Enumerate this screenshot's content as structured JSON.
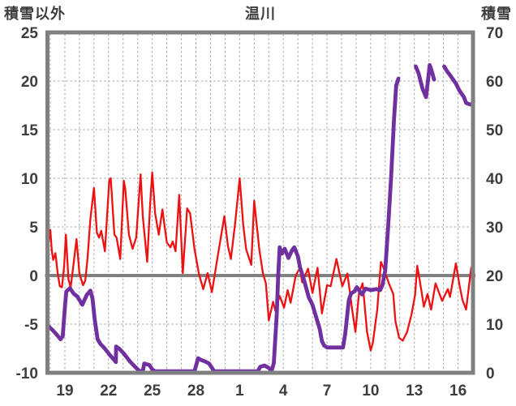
{
  "chart_data": {
    "type": "line",
    "title": "温川",
    "legend": "none",
    "grid": true,
    "left_axis": {
      "label": "積雪以外",
      "min": -10,
      "max": 25,
      "step": 5,
      "ticks": [
        25,
        20,
        15,
        10,
        5,
        0,
        -5,
        -10
      ]
    },
    "right_axis": {
      "label": "積雪",
      "min": 0,
      "max": 70,
      "step": 10,
      "ticks": [
        70,
        60,
        50,
        40,
        30,
        20,
        10,
        0
      ]
    },
    "x_axis": {
      "labels": [
        "19",
        "22",
        "25",
        "28",
        "1",
        "4",
        "7",
        "10",
        "13",
        "16"
      ],
      "label_days": [
        19,
        22,
        25,
        28,
        31,
        34,
        37,
        40,
        43,
        46
      ],
      "gridline_day_start": 18,
      "gridline_day_end": 46,
      "day_min": 17.83,
      "day_max": 47.05
    },
    "zero_line_left_value": 0,
    "colors": {
      "temperature": "#ee1111",
      "snow_depth": "#7030a0",
      "grid": "#a6a6a6",
      "frame": "#808080",
      "text": "#3d3d3d"
    },
    "series": [
      {
        "name": "積雪以外",
        "axis": "left",
        "color": "#ee1111",
        "width": 2.3,
        "segments": [
          [
            [
              17.83,
              2.8
            ],
            [
              18.0,
              4.7
            ],
            [
              18.1,
              2.6
            ],
            [
              18.2,
              1.6
            ],
            [
              18.35,
              2.3
            ],
            [
              18.5,
              0.3
            ],
            [
              18.65,
              -1.1
            ],
            [
              18.8,
              -1.2
            ],
            [
              18.95,
              1.0
            ],
            [
              19.07,
              4.2
            ],
            [
              19.25,
              -0.4
            ],
            [
              19.4,
              -1.2
            ],
            [
              19.55,
              0.6
            ],
            [
              19.8,
              3.75
            ],
            [
              20.0,
              0.2
            ],
            [
              20.25,
              -1.0
            ],
            [
              20.4,
              -0.5
            ],
            [
              20.55,
              1.7
            ],
            [
              20.75,
              5.8
            ],
            [
              21.0,
              9.0
            ],
            [
              21.2,
              4.4
            ],
            [
              21.35,
              3.9
            ],
            [
              21.5,
              4.6
            ],
            [
              21.75,
              2.5
            ],
            [
              22.05,
              9.8
            ],
            [
              22.15,
              10.0
            ],
            [
              22.4,
              4.2
            ],
            [
              22.55,
              3.9
            ],
            [
              22.8,
              1.7
            ],
            [
              23.05,
              9.75
            ],
            [
              23.15,
              8.9
            ],
            [
              23.4,
              4.2
            ],
            [
              23.65,
              2.75
            ],
            [
              23.9,
              3.9
            ],
            [
              24.2,
              10.4
            ],
            [
              24.35,
              6.1
            ],
            [
              24.65,
              1.4
            ],
            [
              24.85,
              7.25
            ],
            [
              25.0,
              10.6
            ],
            [
              25.2,
              6.4
            ],
            [
              25.45,
              4.2
            ],
            [
              25.7,
              6.8
            ],
            [
              26.0,
              3.4
            ],
            [
              26.25,
              2.9
            ],
            [
              26.4,
              3.5
            ],
            [
              26.6,
              2.5
            ],
            [
              26.85,
              8.3
            ],
            [
              27.1,
              0.25
            ],
            [
              27.4,
              6.9
            ],
            [
              27.6,
              6.4
            ],
            [
              27.9,
              2.75
            ],
            [
              28.2,
              0.2
            ],
            [
              28.5,
              -1.4
            ],
            [
              28.8,
              0.25
            ],
            [
              29.1,
              -1.7
            ],
            [
              29.5,
              2.0
            ],
            [
              29.95,
              6.1
            ],
            [
              30.2,
              3.0
            ],
            [
              30.4,
              1.7
            ],
            [
              30.7,
              5.5
            ],
            [
              31.0,
              10.0
            ],
            [
              31.25,
              5.2
            ],
            [
              31.45,
              2.7
            ],
            [
              31.8,
              1.1
            ],
            [
              32.0,
              7.7
            ],
            [
              32.35,
              2.7
            ],
            [
              32.6,
              0.2
            ],
            [
              32.8,
              -0.8
            ],
            [
              33.0,
              -4.6
            ],
            [
              33.3,
              -2.7
            ],
            [
              33.45,
              -3.6
            ],
            [
              33.75,
              -2.1
            ],
            [
              34.05,
              -3.3
            ],
            [
              34.3,
              -1.5
            ],
            [
              34.5,
              -2.8
            ],
            [
              34.85,
              0.0
            ],
            [
              35.15,
              0.8
            ],
            [
              35.3,
              -0.7
            ],
            [
              35.7,
              0.7
            ],
            [
              36.0,
              -1.8
            ],
            [
              36.35,
              0.8
            ],
            [
              36.65,
              -3.9
            ],
            [
              37.0,
              -1.0
            ],
            [
              37.25,
              -1.1
            ],
            [
              37.65,
              1.7
            ],
            [
              38.05,
              -1.1
            ],
            [
              38.4,
              0.2
            ],
            [
              38.75,
              -3.75
            ],
            [
              38.95,
              -5.8
            ],
            [
              39.2,
              -1.8
            ],
            [
              39.45,
              -0.8
            ],
            [
              39.75,
              -5.8
            ],
            [
              40.0,
              -7.7
            ],
            [
              40.15,
              -6.9
            ],
            [
              40.45,
              -3.5
            ],
            [
              40.7,
              1.4
            ],
            [
              40.9,
              0.7
            ],
            [
              41.25,
              -0.8
            ],
            [
              41.55,
              -1.9
            ],
            [
              41.7,
              -4.7
            ],
            [
              41.95,
              -6.4
            ],
            [
              42.2,
              -6.7
            ],
            [
              42.5,
              -5.8
            ],
            [
              42.8,
              -4.0
            ],
            [
              43.05,
              -2.0
            ],
            [
              43.2,
              1.0
            ],
            [
              43.5,
              -1.7
            ],
            [
              43.65,
              -3.2
            ],
            [
              43.9,
              -1.9
            ],
            [
              44.15,
              -3.5
            ],
            [
              44.45,
              -0.8
            ],
            [
              44.9,
              -2.6
            ],
            [
              45.3,
              -1.4
            ],
            [
              45.45,
              -2.2
            ],
            [
              45.85,
              1.25
            ],
            [
              46.1,
              -1.0
            ],
            [
              46.3,
              -2.5
            ],
            [
              46.55,
              -3.5
            ],
            [
              46.9,
              0.8
            ],
            [
              47.0,
              -0.3
            ]
          ]
        ]
      },
      {
        "name": "積雪",
        "axis": "right",
        "color": "#7030a0",
        "width": 4.8,
        "segments": [
          [
            [
              17.83,
              9.7
            ],
            [
              18.15,
              8.8
            ],
            [
              18.45,
              7.8
            ],
            [
              18.7,
              6.9
            ],
            [
              18.85,
              7.5
            ],
            [
              19.0,
              13.5
            ],
            [
              19.1,
              16.7
            ],
            [
              19.35,
              17.4
            ],
            [
              19.6,
              16.3
            ],
            [
              19.85,
              15.7
            ],
            [
              20.2,
              14.0
            ],
            [
              20.5,
              16.0
            ],
            [
              20.75,
              16.9
            ],
            [
              20.9,
              15.2
            ],
            [
              21.05,
              11.0
            ],
            [
              21.25,
              6.9
            ],
            [
              21.45,
              5.9
            ],
            [
              21.65,
              5.3
            ],
            [
              21.9,
              4.4
            ],
            [
              22.1,
              3.6
            ],
            [
              22.4,
              2.6
            ],
            [
              22.5,
              2.2
            ],
            [
              22.52,
              5.4
            ],
            [
              22.75,
              4.9
            ],
            [
              23.0,
              4.1
            ],
            [
              23.25,
              3.2
            ],
            [
              23.45,
              2.4
            ],
            [
              23.7,
              1.6
            ],
            [
              23.9,
              1.0
            ],
            [
              24.1,
              0.4
            ],
            [
              24.35,
              0.3
            ],
            [
              24.45,
              1.9
            ],
            [
              24.8,
              1.6
            ],
            [
              25.0,
              0.7
            ],
            [
              25.2,
              0.3
            ],
            [
              27.9,
              0.3
            ],
            [
              28.15,
              3.0
            ],
            [
              28.3,
              2.7
            ],
            [
              28.65,
              2.3
            ],
            [
              28.9,
              1.9
            ],
            [
              29.1,
              1.0
            ],
            [
              29.25,
              0.3
            ],
            [
              32.25,
              0.3
            ],
            [
              32.4,
              1.2
            ],
            [
              32.7,
              1.5
            ],
            [
              33.0,
              1.0
            ],
            [
              33.2,
              0.4
            ],
            [
              33.35,
              2.0
            ],
            [
              33.55,
              12.0
            ],
            [
              33.65,
              20.0
            ],
            [
              33.75,
              25.8
            ],
            [
              33.9,
              24.5
            ],
            [
              34.1,
              25.5
            ],
            [
              34.35,
              23.6
            ],
            [
              34.6,
              25.2
            ],
            [
              34.75,
              25.8
            ],
            [
              35.0,
              24.0
            ],
            [
              35.15,
              21.7
            ],
            [
              35.4,
              19.3
            ],
            [
              35.75,
              15.5
            ],
            [
              36.0,
              14.0
            ],
            [
              36.25,
              11.5
            ],
            [
              36.5,
              9.0
            ],
            [
              36.65,
              6.5
            ],
            [
              36.8,
              5.6
            ],
            [
              37.0,
              5.2
            ],
            [
              38.1,
              5.2
            ],
            [
              38.25,
              8.0
            ],
            [
              38.5,
              15.0
            ],
            [
              38.65,
              16.3
            ],
            [
              38.9,
              16.8
            ],
            [
              39.05,
              17.6
            ],
            [
              39.4,
              16.1
            ],
            [
              39.65,
              17.3
            ],
            [
              40.0,
              17.0
            ],
            [
              40.4,
              17.2
            ],
            [
              40.65,
              17.0
            ],
            [
              40.8,
              18.0
            ],
            [
              41.0,
              21.0
            ],
            [
              41.2,
              30.0
            ],
            [
              41.4,
              40.0
            ],
            [
              41.6,
              52.0
            ],
            [
              41.75,
              59.0
            ],
            [
              41.9,
              60.5
            ]
          ],
          [
            [
              43.1,
              63.0
            ],
            [
              43.3,
              61.5
            ],
            [
              43.55,
              58.5
            ],
            [
              43.8,
              56.7
            ],
            [
              43.95,
              60.5
            ],
            [
              44.05,
              63.3
            ],
            [
              44.2,
              62.0
            ],
            [
              44.35,
              60.3
            ]
          ],
          [
            [
              45.05,
              63.0
            ],
            [
              45.25,
              62.0
            ],
            [
              45.45,
              61.2
            ],
            [
              45.85,
              59.5
            ],
            [
              46.1,
              58.0
            ],
            [
              46.4,
              56.7
            ],
            [
              46.55,
              55.5
            ],
            [
              46.8,
              55.2
            ],
            [
              46.95,
              55.1
            ],
            [
              47.05,
              55.8
            ]
          ]
        ]
      }
    ]
  }
}
